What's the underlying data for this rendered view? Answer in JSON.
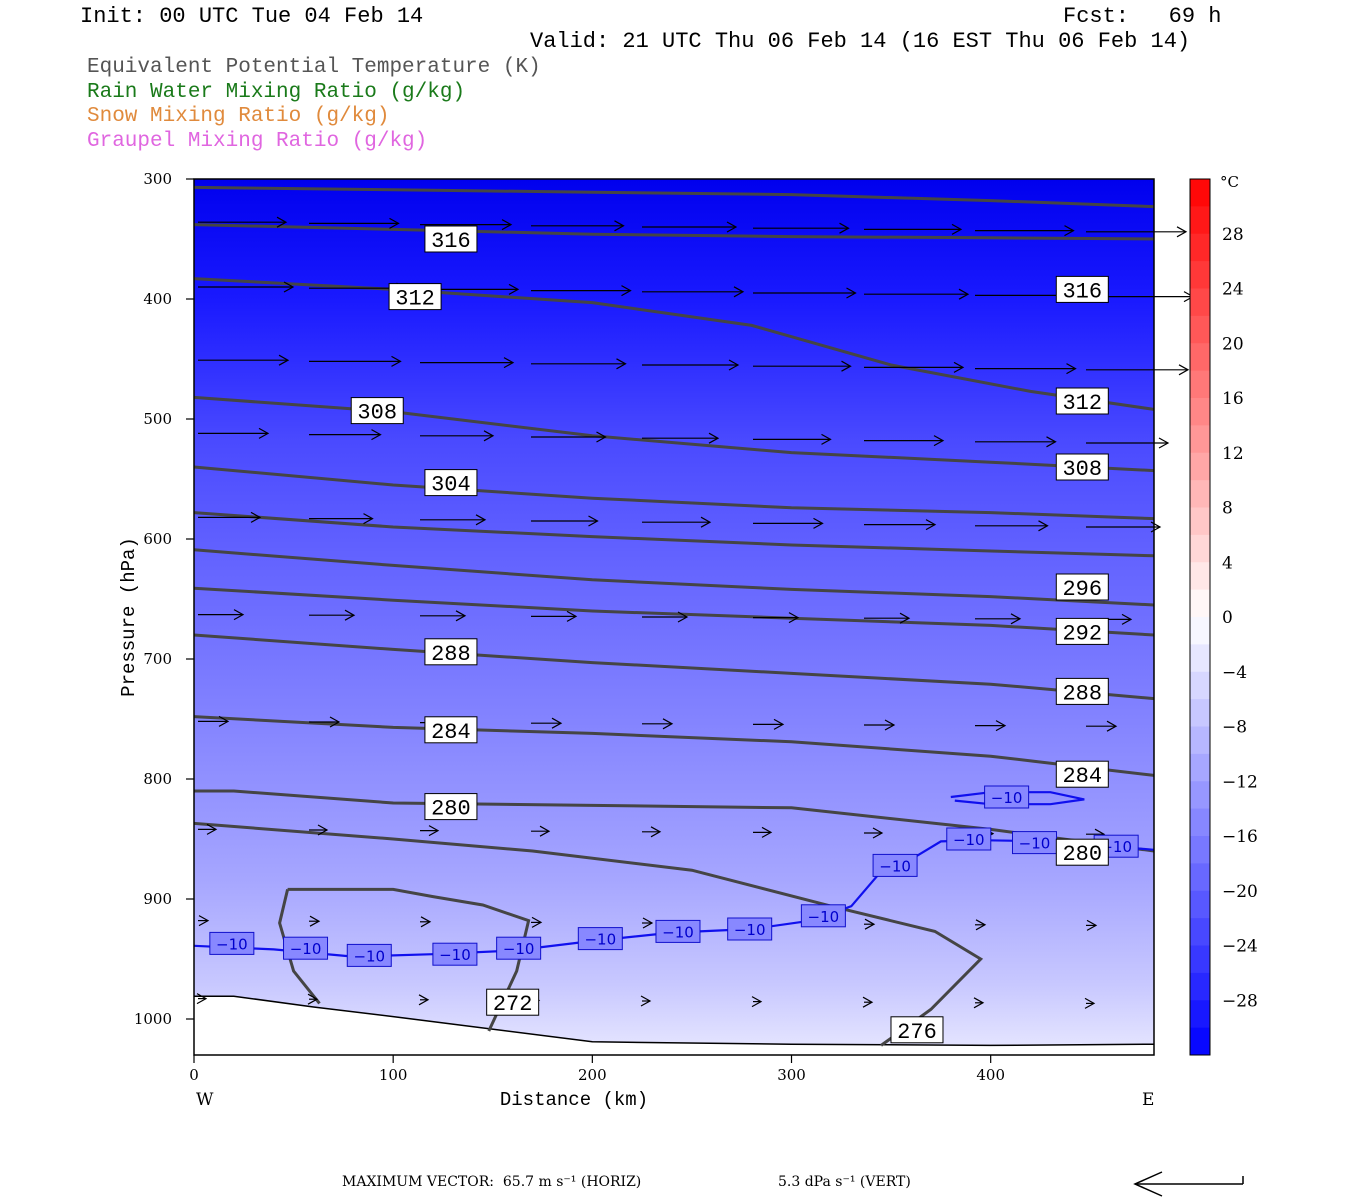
{
  "header": {
    "init": "Init: 00 UTC Tue 04 Feb 14",
    "fcst": "Fcst:   69 h",
    "valid": "Valid: 21 UTC Thu 06 Feb 14 (16 EST Thu 06 Feb 14)"
  },
  "legend": [
    {
      "label": "Equivalent Potential Temperature (K)",
      "color": "#555555"
    },
    {
      "label": "Rain Water Mixing Ratio (g/kg)",
      "color": "#1a7a1a"
    },
    {
      "label": "Snow Mixing Ratio (g/kg)",
      "color": "#e08a3c"
    },
    {
      "label": "Graupel Mixing Ratio (g/kg)",
      "color": "#e066e0"
    }
  ],
  "footer": {
    "horiz": "MAXIMUM VECTOR:  65.7 m s⁻¹ (HORIZ)",
    "vert": "5.3 dPa s⁻¹ (VERT)"
  },
  "chart_data": {
    "type": "heatmap",
    "xlabel": "Distance (km)",
    "ylabel": "Pressure (hPa)",
    "x_ticks": [
      0,
      100,
      200,
      300,
      400
    ],
    "y_ticks": [
      300,
      400,
      500,
      600,
      700,
      800,
      900,
      1000
    ],
    "xlim": [
      0,
      482
    ],
    "ylim": [
      1030,
      300
    ],
    "x_end_labels": {
      "left": "W",
      "right": "E"
    },
    "colorbar": {
      "unit": "°C",
      "tick_labels": [
        "28",
        "24",
        "20",
        "16",
        "12",
        "8",
        "4",
        "0",
        "−4",
        "−8",
        "−12",
        "−16",
        "−20",
        "−24",
        "−28"
      ],
      "tick_values": [
        28,
        24,
        20,
        16,
        12,
        8,
        4,
        0,
        -4,
        -8,
        -12,
        -16,
        -20,
        -24,
        -28
      ],
      "range": [
        -32,
        32
      ],
      "step": 2
    },
    "theta_e_lines": [
      {
        "x": [
          0,
          100,
          200,
          300,
          400,
          482
        ],
        "y": [
          307,
          309,
          311,
          313,
          318,
          323
        ]
      },
      {
        "x": [
          0,
          100,
          200,
          300,
          400,
          482
        ],
        "y": [
          338,
          342,
          346,
          348,
          349,
          350
        ]
      },
      {
        "label": "316",
        "x": [
          0,
          100,
          200,
          280,
          350,
          420,
          482
        ],
        "y": [
          383,
          392,
          403,
          422,
          455,
          477,
          492
        ]
      },
      {
        "label": "312",
        "x": [
          0,
          100,
          200,
          300,
          400,
          482
        ],
        "y": [
          482,
          494,
          514,
          528,
          536,
          543
        ]
      },
      {
        "label": "308",
        "x": [
          0,
          100,
          200,
          300,
          400,
          482
        ],
        "y": [
          540,
          555,
          566,
          574,
          578,
          583
        ]
      },
      {
        "label": "304",
        "x": [
          0,
          100,
          200,
          300,
          400,
          482
        ],
        "y": [
          578,
          590,
          598,
          605,
          610,
          614
        ]
      },
      {
        "x": [
          0,
          100,
          200,
          300,
          400,
          482
        ],
        "y": [
          609,
          622,
          634,
          642,
          648,
          655
        ]
      },
      {
        "label": "296",
        "x": [
          0,
          100,
          200,
          300,
          400,
          482
        ],
        "y": [
          641,
          651,
          660,
          666,
          672,
          680
        ]
      },
      {
        "label": "292",
        "x": [
          0,
          100,
          200,
          300,
          400,
          482
        ],
        "y": [
          680,
          692,
          703,
          712,
          721,
          733
        ]
      },
      {
        "label": "288",
        "x": [
          0,
          100,
          200,
          300,
          400,
          482
        ],
        "y": [
          748,
          757,
          762,
          769,
          781,
          797
        ]
      },
      {
        "label": "284",
        "x": [
          0,
          20,
          100,
          200,
          300,
          400,
          482
        ],
        "y": [
          810,
          810,
          820,
          822,
          824,
          842,
          860
        ]
      },
      {
        "label": "280",
        "x": [
          0,
          100,
          170,
          250,
          320,
          372,
          395,
          370,
          345
        ],
        "y": [
          837,
          850,
          860,
          876,
          906,
          927,
          950,
          992,
          1022
        ]
      },
      {
        "label": "276",
        "x": [
          47,
          70,
          100,
          120,
          145,
          168,
          162,
          148
        ],
        "y": [
          892,
          892,
          892,
          898,
          905,
          918,
          960,
          1010
        ]
      },
      {
        "label": "272",
        "x": [
          47,
          43,
          50,
          63
        ],
        "y": [
          892,
          920,
          960,
          987
        ]
      }
    ],
    "isotherm_minus10": [
      {
        "x": [
          0,
          40,
          80,
          120,
          160,
          200,
          240,
          280,
          310,
          330,
          345,
          360,
          375,
          395,
          430,
          482
        ],
        "y": [
          939,
          942,
          948,
          946,
          943,
          935,
          928,
          925,
          918,
          906,
          877,
          867,
          852,
          851,
          852,
          859
        ]
      },
      {
        "x": [
          380,
          400,
          430,
          447,
          430,
          400,
          382
        ],
        "y": [
          815,
          811,
          811,
          817,
          821,
          821,
          818
        ]
      }
    ],
    "isotherm_labels": [
      {
        "text": "−10",
        "x": 19,
        "y": 937
      },
      {
        "text": "−10",
        "x": 56,
        "y": 941
      },
      {
        "text": "−10",
        "x": 88,
        "y": 947
      },
      {
        "text": "−10",
        "x": 131,
        "y": 946
      },
      {
        "text": "−10",
        "x": 163,
        "y": 941
      },
      {
        "text": "−10",
        "x": 204,
        "y": 933
      },
      {
        "text": "−10",
        "x": 243,
        "y": 927
      },
      {
        "text": "−10",
        "x": 279,
        "y": 925
      },
      {
        "text": "−10",
        "x": 316,
        "y": 914
      },
      {
        "text": "−10",
        "x": 352,
        "y": 872
      },
      {
        "text": "−10",
        "x": 389,
        "y": 850
      },
      {
        "text": "−10",
        "x": 408,
        "y": 815
      },
      {
        "text": "−10",
        "x": 422,
        "y": 853
      },
      {
        "text": "−10",
        "x": 463,
        "y": 856
      }
    ],
    "theta_e_labels": [
      {
        "text": "316",
        "x": 129,
        "y": 350
      },
      {
        "text": "312",
        "x": 111,
        "y": 398
      },
      {
        "text": "308",
        "x": 92,
        "y": 493
      },
      {
        "text": "304",
        "x": 129,
        "y": 553
      },
      {
        "text": "288",
        "x": 129,
        "y": 694
      },
      {
        "text": "284",
        "x": 129,
        "y": 759
      },
      {
        "text": "280",
        "x": 129,
        "y": 823
      },
      {
        "text": "272",
        "x": 160,
        "y": 986
      },
      {
        "text": "276",
        "x": 363,
        "y": 1009
      },
      {
        "text": "316",
        "x": 446,
        "y": 392
      },
      {
        "text": "312",
        "x": 446,
        "y": 485
      },
      {
        "text": "308",
        "x": 446,
        "y": 540
      },
      {
        "text": "296",
        "x": 446,
        "y": 640
      },
      {
        "text": "292",
        "x": 446,
        "y": 677
      },
      {
        "text": "288",
        "x": 446,
        "y": 727
      },
      {
        "text": "284",
        "x": 446,
        "y": 796
      },
      {
        "text": "280",
        "x": 446,
        "y": 861
      }
    ],
    "terrain": {
      "x": [
        0,
        20,
        60,
        100,
        200,
        300,
        400,
        482
      ],
      "y": [
        981,
        981,
        990,
        998,
        1019,
        1021,
        1022,
        1021
      ]
    }
  }
}
